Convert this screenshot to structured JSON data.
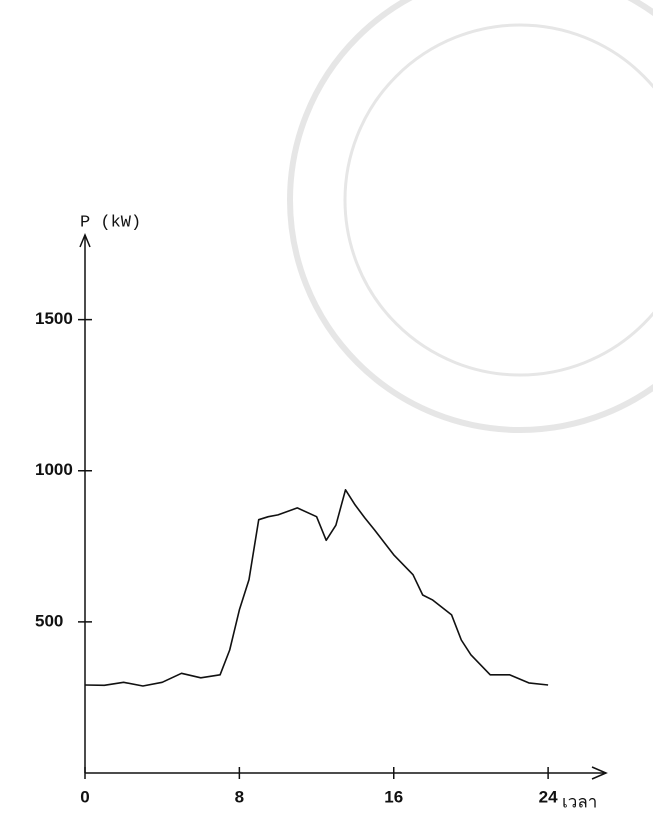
{
  "chart_data": {
    "type": "line",
    "y_label": "P (kW)",
    "x_label": "เวลา",
    "x": [
      0,
      1,
      2,
      3,
      4,
      5,
      6,
      7,
      7.5,
      8,
      8.5,
      9,
      9.5,
      10,
      11,
      12,
      12.5,
      13,
      13.5,
      14,
      14.5,
      15,
      16,
      17,
      17.5,
      18,
      19,
      19.5,
      20,
      21,
      22,
      23,
      24
    ],
    "values": [
      291,
      290,
      300,
      288,
      300,
      330,
      315,
      325,
      407,
      540,
      640,
      838,
      848,
      854,
      877,
      848,
      770,
      820,
      937,
      887,
      844,
      805,
      722,
      656,
      589,
      573,
      523,
      440,
      391,
      325,
      325,
      298,
      291
    ],
    "color": "#111111",
    "xlim": [
      0,
      27
    ],
    "ylim": [
      0,
      1780
    ],
    "xticks": [
      0,
      8,
      16,
      24
    ],
    "yticks": [
      500,
      1000,
      1500
    ]
  }
}
